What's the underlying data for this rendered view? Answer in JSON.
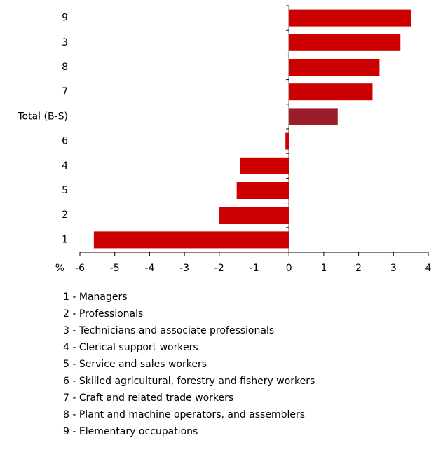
{
  "chart_data": {
    "type": "bar",
    "orientation": "horizontal",
    "categories": [
      "9",
      "3",
      "8",
      "7",
      "Total (B-S)",
      "6",
      "4",
      "5",
      "2",
      "1"
    ],
    "values": [
      3.5,
      3.2,
      2.6,
      2.4,
      1.4,
      -0.1,
      -1.4,
      -1.5,
      -2.0,
      -5.6
    ],
    "colors": [
      "#cc0000",
      "#cc0000",
      "#cc0000",
      "#cc0000",
      "#9b1c2a",
      "#cc0000",
      "#cc0000",
      "#cc0000",
      "#cc0000",
      "#cc0000"
    ],
    "xlim": [
      -6,
      4
    ],
    "xticks": [
      -6,
      -5,
      -4,
      -3,
      -2,
      -1,
      0,
      1,
      2,
      3,
      4
    ],
    "xlabel": "%",
    "legend": [
      "1 - Managers",
      "2 - Professionals",
      "3 - Technicians and associate professionals",
      "4 - Clerical support workers",
      "5 - Service and sales workers",
      "6 - Skilled agricultural, forestry and fishery workers",
      "7 - Craft and related trade workers",
      "8 - Plant and machine operators, and assemblers",
      "9 - Elementary occupations"
    ]
  }
}
